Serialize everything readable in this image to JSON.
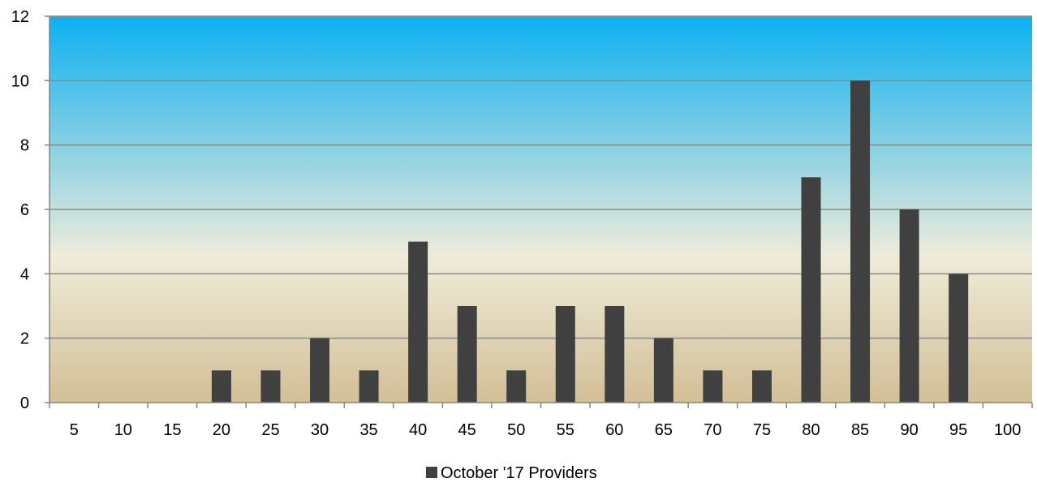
{
  "chart_data": {
    "type": "bar",
    "title": "",
    "xlabel": "",
    "ylabel": "",
    "categories": [
      "5",
      "10",
      "15",
      "20",
      "25",
      "30",
      "35",
      "40",
      "45",
      "50",
      "55",
      "60",
      "65",
      "70",
      "75",
      "80",
      "85",
      "90",
      "95",
      "100"
    ],
    "series": [
      {
        "name": "October '17 Providers",
        "values": [
          0,
          0,
          0,
          1,
          1,
          2,
          1,
          5,
          3,
          1,
          3,
          3,
          2,
          1,
          1,
          7,
          10,
          6,
          4,
          0
        ]
      }
    ],
    "ylim": [
      0,
      12
    ],
    "yticks": [
      "0",
      "2",
      "4",
      "6",
      "8",
      "10",
      "12"
    ],
    "grid": true,
    "legend_position": "bottom",
    "colors": {
      "bar": "#404040",
      "gradient_top": "#0bb0f0",
      "gradient_mid": "#efecda",
      "gradient_bottom": "#d2bf96",
      "gridline": "#8a8a8a"
    }
  }
}
